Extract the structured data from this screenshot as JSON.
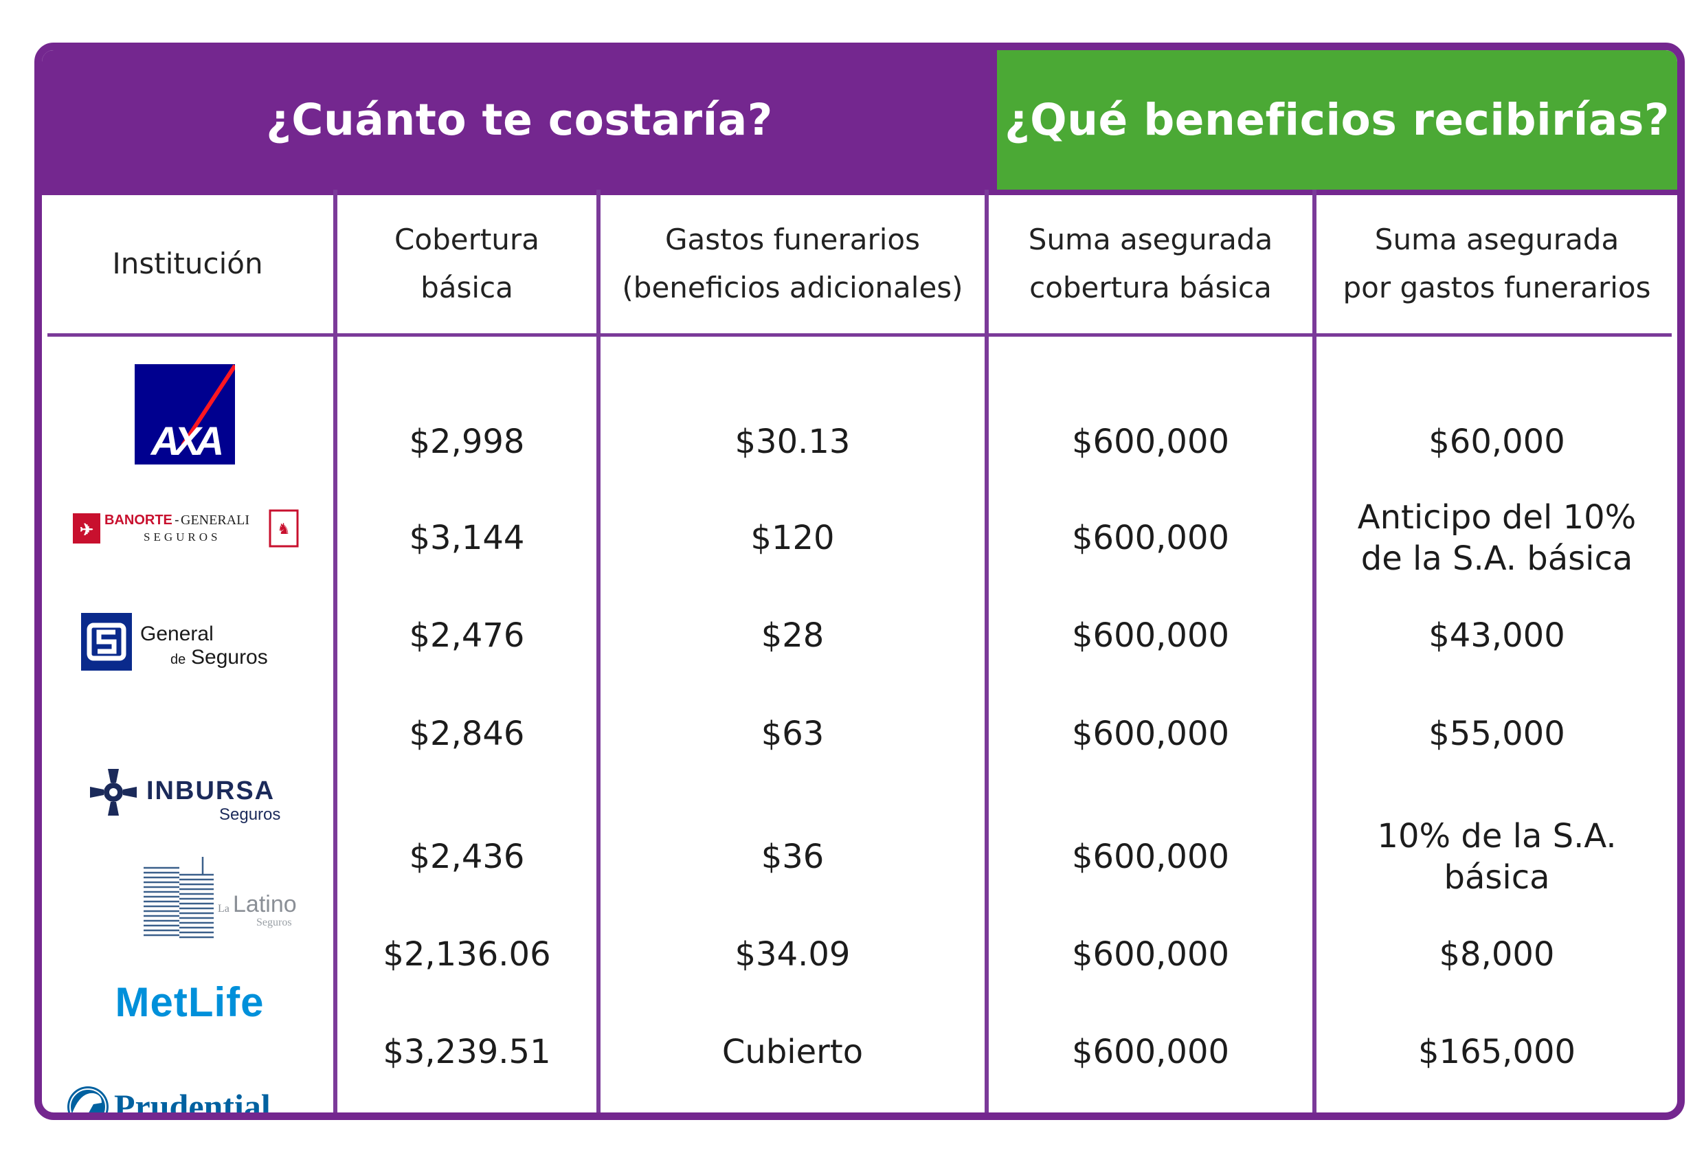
{
  "headers": {
    "cost": "¿Cuánto te costaría?",
    "benefits": "¿Qué beneficios recibirías?"
  },
  "columns": [
    {
      "line1": "Institución",
      "line2": ""
    },
    {
      "line1": "Cobertura",
      "line2": "básica"
    },
    {
      "line1": "Gastos funerarios",
      "line2": "(beneficios adicionales)"
    },
    {
      "line1": "Suma asegurada",
      "line2": "cobertura básica"
    },
    {
      "line1": "Suma asegurada",
      "line2": "por gastos funerarios"
    }
  ],
  "rows": [
    {
      "institution": "AXA",
      "basic": "$2,998",
      "funeral": "$30.13",
      "sum_basic": "$600,000",
      "sum_funeral_1": "$60,000",
      "sum_funeral_2": ""
    },
    {
      "institution": "Banorte-Generali Seguros",
      "basic": "$3,144",
      "funeral": "$120",
      "sum_basic": "$600,000",
      "sum_funeral_1": "Anticipo del 10%",
      "sum_funeral_2": "de la S.A. básica"
    },
    {
      "institution": "General de Seguros",
      "basic": "$2,476",
      "funeral": "$28",
      "sum_basic": "$600,000",
      "sum_funeral_1": "$43,000",
      "sum_funeral_2": ""
    },
    {
      "institution": "Inbursa Seguros",
      "basic": "$2,846",
      "funeral": "$63",
      "sum_basic": "$600,000",
      "sum_funeral_1": "$55,000",
      "sum_funeral_2": ""
    },
    {
      "institution": "La Latino Seguros",
      "basic": "$2,436",
      "funeral": "$36",
      "sum_basic": "$600,000",
      "sum_funeral_1": "10% de la S.A.",
      "sum_funeral_2": "básica"
    },
    {
      "institution": "MetLife",
      "basic": "$2,136.06",
      "funeral": "$34.09",
      "sum_basic": "$600,000",
      "sum_funeral_1": "$8,000",
      "sum_funeral_2": ""
    },
    {
      "institution": "Prudential",
      "basic": "$3,239.51",
      "funeral": "Cubierto",
      "sum_basic": "$600,000",
      "sum_funeral_1": "$165,000",
      "sum_funeral_2": ""
    }
  ],
  "logos": {
    "axa": "AXA",
    "banorte_1": "BANORTE",
    "banorte_2": "GENERALI",
    "banorte_3": "SEGUROS",
    "general_1": "General",
    "general_2": "de",
    "general_3": "Seguros",
    "inbursa_1": "INBURSA",
    "inbursa_2": "Seguros",
    "latino_1": "La",
    "latino_2": "Latino",
    "latino_3": "Seguros",
    "metlife": "MetLife",
    "prudential": "Prudential"
  },
  "colors": {
    "purple": "#74278f",
    "green": "#4ba935",
    "axa_blue": "#00008f",
    "axa_red": "#ff1721",
    "banorte_red": "#c8102e",
    "general_blue": "#0a2a8c",
    "inbursa_navy": "#1b2a5a",
    "metlife_blue": "#0090da",
    "prudential_blue": "#0061a0"
  }
}
